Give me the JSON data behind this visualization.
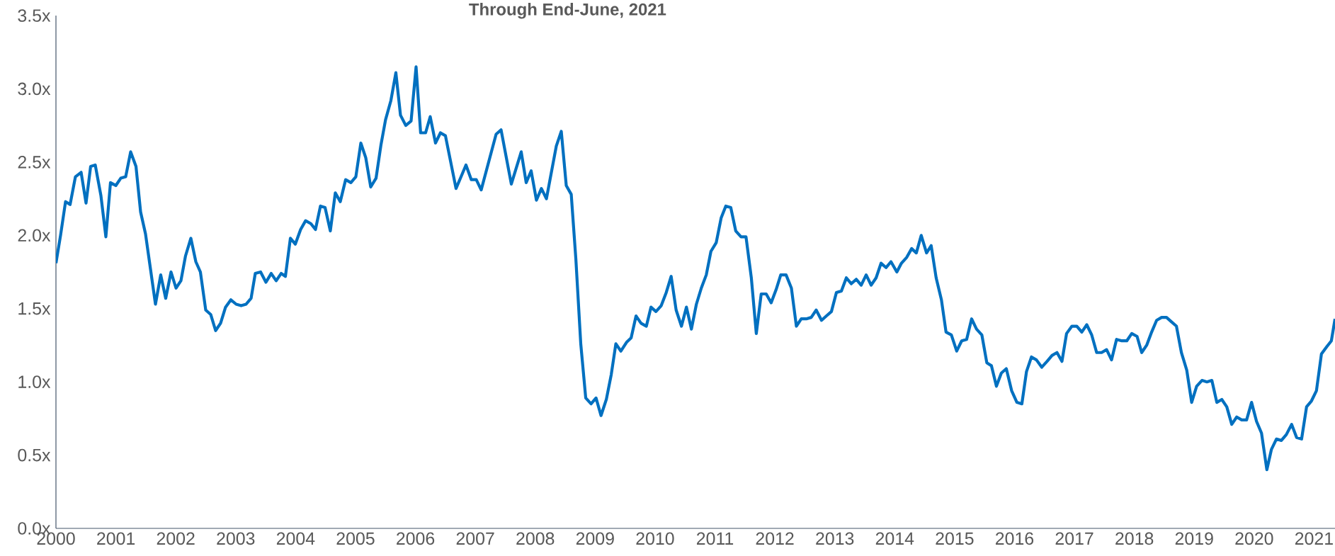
{
  "chart_data": {
    "type": "line",
    "title": "Through End-June, 2021",
    "color": "#0070c0",
    "marker": "none",
    "x": [
      2000.0,
      2000.077,
      2000.16,
      2000.236,
      2000.325,
      2000.42,
      2000.502,
      2000.579,
      2000.656,
      2000.751,
      2000.833,
      2000.91,
      2000.999,
      2001.082,
      2001.164,
      2001.247,
      2001.336,
      2001.413,
      2001.495,
      2001.578,
      2001.661,
      2001.749,
      2001.832,
      2001.921,
      2002.004,
      2002.086,
      2002.163,
      2002.252,
      2002.335,
      2002.411,
      2002.5,
      2002.583,
      2002.665,
      2002.748,
      2002.831,
      2002.92,
      2003.008,
      2003.091,
      2003.174,
      2003.257,
      2003.327,
      2003.416,
      2003.505,
      2003.593,
      2003.676,
      2003.759,
      2003.83,
      2003.913,
      2003.995,
      2004.084,
      2004.167,
      2004.255,
      2004.332,
      2004.415,
      2004.492,
      2004.58,
      2004.663,
      2004.746,
      2004.835,
      2004.923,
      2005.006,
      2005.089,
      2005.171,
      2005.254,
      2005.343,
      2005.426,
      2005.502,
      2005.591,
      2005.674,
      2005.751,
      2005.839,
      2005.928,
      2006.011,
      2006.087,
      2006.17,
      2006.247,
      2006.336,
      2006.418,
      2006.501,
      2006.678,
      2006.762,
      2006.844,
      2006.933,
      2007.016,
      2007.098,
      2007.347,
      2007.43,
      2007.601,
      2007.766,
      2007.849,
      2007.932,
      2008.02,
      2008.103,
      2008.187,
      2008.352,
      2008.435,
      2008.518,
      2008.601,
      2008.678,
      2008.76,
      2008.843,
      2008.932,
      2009.015,
      2009.098,
      2009.187,
      2009.269,
      2009.346,
      2009.43,
      2009.524,
      2009.601,
      2009.683,
      2009.766,
      2009.855,
      2009.932,
      2010.015,
      2010.103,
      2010.187,
      2010.269,
      2010.352,
      2010.441,
      2010.524,
      2010.607,
      2010.69,
      2010.772,
      2010.855,
      2010.932,
      2011.021,
      2011.104,
      2011.181,
      2011.264,
      2011.347,
      2011.435,
      2011.518,
      2011.607,
      2011.69,
      2011.772,
      2011.855,
      2011.938,
      2012.021,
      2012.098,
      2012.187,
      2012.276,
      2012.359,
      2012.441,
      2012.524,
      2012.607,
      2012.69,
      2012.779,
      2012.861,
      2012.944,
      2013.027,
      2013.11,
      2013.193,
      2013.276,
      2013.359,
      2013.441,
      2013.524,
      2013.607,
      2013.69,
      2013.772,
      2013.855,
      2013.938,
      2014.036,
      2014.113,
      2014.201,
      2014.284,
      2014.361,
      2014.443,
      2014.532,
      2014.609,
      2014.692,
      2014.78,
      2014.857,
      2014.946,
      2015.035,
      2015.118,
      2015.201,
      2015.284,
      2015.366,
      2015.455,
      2015.538,
      2015.615,
      2015.698,
      2015.78,
      2015.863,
      2015.952,
      2016.04,
      2016.123,
      2016.2,
      2016.283,
      2016.366,
      2016.455,
      2016.544,
      2016.626,
      2016.709,
      2016.792,
      2016.869,
      2016.958,
      2017.04,
      2017.123,
      2017.206,
      2017.289,
      2017.371,
      2017.454,
      2017.537,
      2017.62,
      2017.703,
      2017.792,
      2017.874,
      2017.957,
      2018.046,
      2018.123,
      2018.206,
      2018.289,
      2018.372,
      2018.455,
      2018.537,
      2018.62,
      2018.703,
      2018.786,
      2018.875,
      2018.957,
      2019.04,
      2019.129,
      2019.212,
      2019.294,
      2019.377,
      2019.46,
      2019.543,
      2019.626,
      2019.709,
      2019.792,
      2019.874,
      2019.957,
      2020.04,
      2020.123,
      2020.212,
      2020.289,
      2020.372,
      2020.454,
      2020.537,
      2020.626,
      2020.709,
      2020.792,
      2020.875,
      2020.957,
      2021.04,
      2021.123,
      2021.212,
      2021.289,
      2021.35
    ],
    "values": [
      1.81,
      2.0,
      2.23,
      2.21,
      2.4,
      2.43,
      2.22,
      2.47,
      2.48,
      2.27,
      1.99,
      2.36,
      2.34,
      2.39,
      2.4,
      2.57,
      2.47,
      2.16,
      2.01,
      1.77,
      1.53,
      1.73,
      1.57,
      1.75,
      1.64,
      1.69,
      1.86,
      1.98,
      1.82,
      1.75,
      1.49,
      1.46,
      1.35,
      1.4,
      1.51,
      1.56,
      1.53,
      1.52,
      1.53,
      1.57,
      1.74,
      1.75,
      1.68,
      1.74,
      1.69,
      1.74,
      1.72,
      1.98,
      1.94,
      2.04,
      2.1,
      2.08,
      2.04,
      2.2,
      2.19,
      2.03,
      2.29,
      2.23,
      2.38,
      2.36,
      2.4,
      2.63,
      2.53,
      2.33,
      2.39,
      2.62,
      2.79,
      2.92,
      3.11,
      2.82,
      2.75,
      2.78,
      3.15,
      2.7,
      2.7,
      2.81,
      2.63,
      2.7,
      2.68,
      2.32,
      2.4,
      2.48,
      2.38,
      2.38,
      2.31,
      2.69,
      2.72,
      2.35,
      2.57,
      2.36,
      2.44,
      2.24,
      2.32,
      2.25,
      2.61,
      2.71,
      2.34,
      2.28,
      1.84,
      1.26,
      0.89,
      0.85,
      0.89,
      0.77,
      0.88,
      1.05,
      1.26,
      1.21,
      1.27,
      1.3,
      1.45,
      1.4,
      1.38,
      1.51,
      1.48,
      1.52,
      1.61,
      1.72,
      1.49,
      1.38,
      1.51,
      1.36,
      1.53,
      1.64,
      1.73,
      1.89,
      1.95,
      2.12,
      2.2,
      2.19,
      2.03,
      1.99,
      1.99,
      1.71,
      1.33,
      1.6,
      1.6,
      1.54,
      1.63,
      1.73,
      1.73,
      1.64,
      1.38,
      1.43,
      1.43,
      1.44,
      1.49,
      1.42,
      1.45,
      1.48,
      1.61,
      1.62,
      1.71,
      1.67,
      1.7,
      1.66,
      1.73,
      1.66,
      1.71,
      1.81,
      1.78,
      1.82,
      1.75,
      1.81,
      1.85,
      1.91,
      1.88,
      2.0,
      1.88,
      1.93,
      1.71,
      1.56,
      1.34,
      1.32,
      1.21,
      1.28,
      1.29,
      1.43,
      1.36,
      1.32,
      1.13,
      1.11,
      0.97,
      1.06,
      1.09,
      0.94,
      0.86,
      0.85,
      1.07,
      1.17,
      1.15,
      1.1,
      1.14,
      1.18,
      1.2,
      1.14,
      1.33,
      1.38,
      1.38,
      1.34,
      1.39,
      1.32,
      1.2,
      1.2,
      1.22,
      1.15,
      1.29,
      1.28,
      1.28,
      1.33,
      1.31,
      1.2,
      1.25,
      1.34,
      1.42,
      1.44,
      1.44,
      1.41,
      1.38,
      1.2,
      1.08,
      0.86,
      0.97,
      1.01,
      1.0,
      1.01,
      0.86,
      0.88,
      0.83,
      0.71,
      0.76,
      0.74,
      0.74,
      0.86,
      0.73,
      0.65,
      0.4,
      0.54,
      0.61,
      0.6,
      0.64,
      0.71,
      0.62,
      0.61,
      0.83,
      0.87,
      0.94,
      1.19,
      1.24,
      1.28,
      1.43
    ],
    "xlim": [
      2000,
      2021.35
    ],
    "ylim": [
      0,
      3.5
    ],
    "xticks": [
      2000,
      2001,
      2002,
      2003,
      2004,
      2005,
      2006,
      2007,
      2008,
      2009,
      2010,
      2011,
      2012,
      2013,
      2014,
      2015,
      2016,
      2017,
      2018,
      2019,
      2020,
      2021
    ],
    "yticks": [
      {
        "value": 0,
        "label": "0.0x"
      },
      {
        "value": 0.5,
        "label": "0.5x"
      },
      {
        "value": 1,
        "label": "1.0x"
      },
      {
        "value": 1.5,
        "label": "1.5x"
      },
      {
        "value": 2,
        "label": "2.0x"
      },
      {
        "value": 2.5,
        "label": "2.5x"
      },
      {
        "value": 3,
        "label": "3.0x"
      },
      {
        "value": 3.5,
        "label": "3.5x"
      }
    ]
  }
}
